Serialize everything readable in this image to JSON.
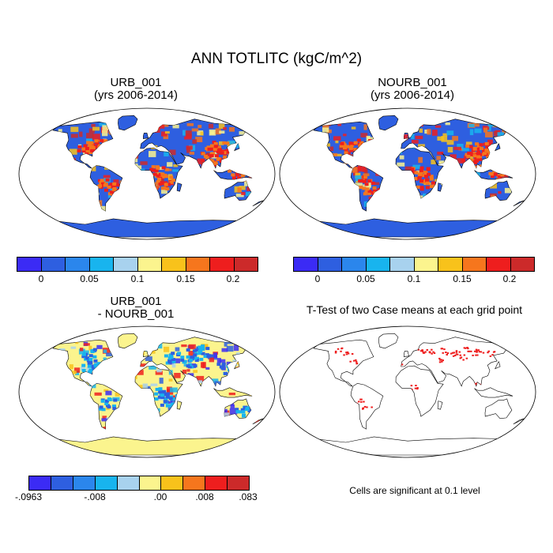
{
  "title": "ANN TOTLITC (kgC/m^2)",
  "panels": [
    {
      "title_line1": "URB_001",
      "title_line2": "(yrs 2006-2014)"
    },
    {
      "title_line1": "NOURB_001",
      "title_line2": "(yrs 2006-2014)"
    },
    {
      "title_line1": "URB_001",
      "title_line2": "- NOURB_001"
    },
    {
      "title_line1": "T-Test of two Case means at each grid point",
      "title_line2": ""
    }
  ],
  "colorbar_main": {
    "colors": [
      "#3b2bf5",
      "#2e5fe0",
      "#2b86ec",
      "#18b4ee",
      "#a8d2ee",
      "#fbf48e",
      "#f8c21b",
      "#f6761d",
      "#ee1e1e",
      "#cc2a2a"
    ],
    "ticks": [
      "0",
      "0.05",
      "0.1",
      "0.15",
      "0.2"
    ]
  },
  "colorbar_diff": {
    "colors": [
      "#3b2bf5",
      "#2e5fe0",
      "#2b86ec",
      "#18b4ee",
      "#a8d2ee",
      "#fbf48e",
      "#f8c21b",
      "#f6761d",
      "#ee1e1e",
      "#cc2a2a"
    ],
    "ticks": [
      "-.0963",
      "-.008",
      ".00",
      ".008",
      ".083"
    ]
  },
  "note": "Cells are significant at 0.1 level"
}
